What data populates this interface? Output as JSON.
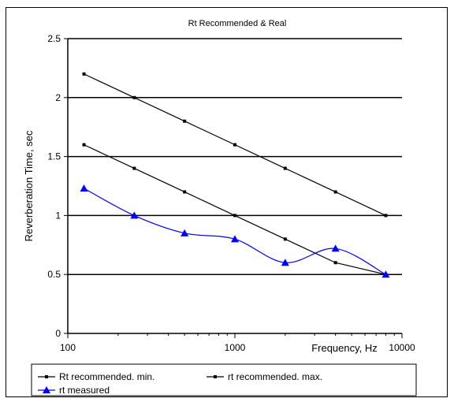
{
  "chart_data": {
    "type": "line",
    "title": "Rt Recommended & Real",
    "xlabel": "Frequency, Hz",
    "ylabel": "Reverberation Time, sec",
    "x_scale": "log",
    "xlim": [
      100,
      10000
    ],
    "ylim": [
      0,
      2.5
    ],
    "x_ticks": [
      "100",
      "1000",
      "10000"
    ],
    "y_ticks": [
      "0",
      "0.5",
      "1",
      "1.5",
      "2",
      "2.5"
    ],
    "grid": "horizontal",
    "legend_position": "bottom",
    "x": [
      125,
      250,
      500,
      1000,
      2000,
      4000,
      8000
    ],
    "series": [
      {
        "name": "Rt recommended. min.",
        "color": "#000000",
        "marker": "dot",
        "values": [
          1.6,
          1.4,
          1.2,
          1.0,
          0.8,
          0.6,
          0.5
        ]
      },
      {
        "name": "rt recommended. max.",
        "color": "#000000",
        "marker": "dot",
        "values": [
          2.2,
          2.0,
          1.8,
          1.6,
          1.4,
          1.2,
          1.0
        ]
      },
      {
        "name": "rt measured",
        "color": "#0000ff",
        "marker": "triangle",
        "smooth": true,
        "values": [
          1.23,
          1.0,
          0.85,
          0.8,
          0.6,
          0.72,
          0.5
        ]
      }
    ]
  }
}
